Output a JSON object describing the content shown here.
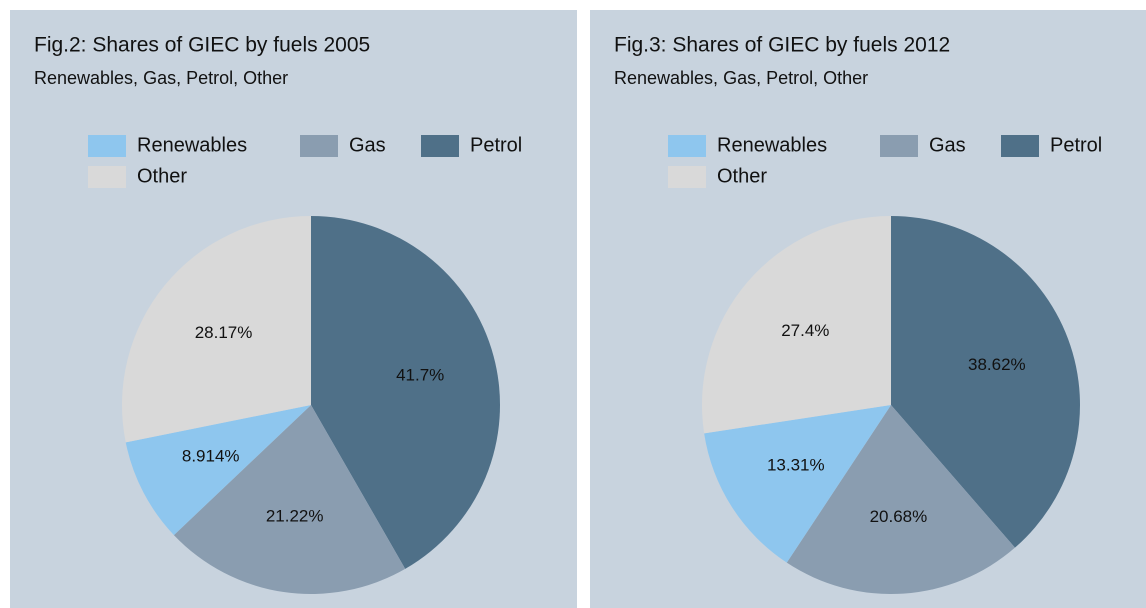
{
  "chart_data": [
    {
      "type": "pie",
      "title": "Fig.2: Shares of GIEC by fuels 2005",
      "subtitle": "Renewables, Gas, Petrol, Other",
      "categories": [
        "Renewables",
        "Gas",
        "Petrol",
        "Other"
      ],
      "values": [
        8.914,
        21.22,
        41.7,
        28.17
      ],
      "value_labels": [
        "8.914%",
        "21.22%",
        "41.7%",
        "28.17%"
      ],
      "colors": [
        "#8ec6ee",
        "#8a9db0",
        "#4f7088",
        "#d9d9d9"
      ]
    },
    {
      "type": "pie",
      "title": "Fig.3: Shares of GIEC by fuels 2012",
      "subtitle": "Renewables, Gas, Petrol, Other",
      "categories": [
        "Renewables",
        "Gas",
        "Petrol",
        "Other"
      ],
      "values": [
        13.31,
        20.68,
        38.62,
        27.4
      ],
      "value_labels": [
        "13.31%",
        "20.68%",
        "38.62%",
        "27.4%"
      ],
      "colors": [
        "#8ec6ee",
        "#8a9db0",
        "#4f7088",
        "#d9d9d9"
      ]
    }
  ]
}
